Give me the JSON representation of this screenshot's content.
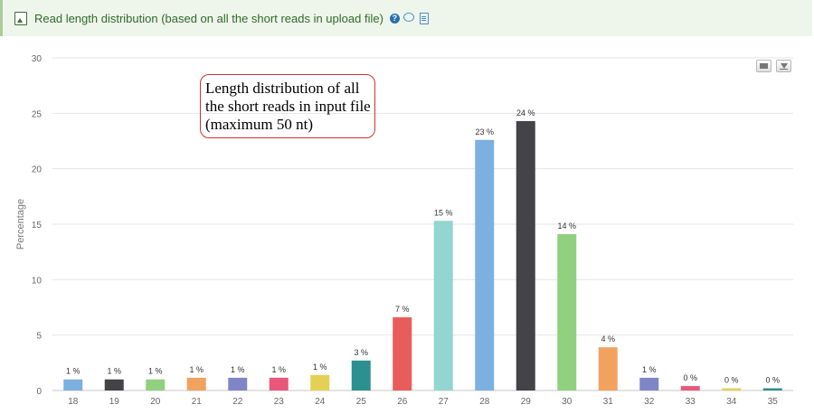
{
  "panel": {
    "title": "Read length distribution (based on all the short reads in upload file)",
    "help_icon_glyph": "?"
  },
  "annotation": {
    "text": "Length distribution of all the short reads in input file (maximum 50 nt)"
  },
  "chart_data": {
    "type": "bar",
    "categories": [
      "18",
      "19",
      "20",
      "21",
      "22",
      "23",
      "24",
      "25",
      "26",
      "27",
      "28",
      "29",
      "30",
      "31",
      "32",
      "33",
      "34",
      "35"
    ],
    "values": [
      1.0,
      1.0,
      1.0,
      1.15,
      1.15,
      1.15,
      1.4,
      2.7,
      6.6,
      15.3,
      22.6,
      24.3,
      14.1,
      3.9,
      1.15,
      0.4,
      0.2,
      0.2
    ],
    "data_labels": [
      "1 %",
      "1 %",
      "1 %",
      "1 %",
      "1 %",
      "1 %",
      "1 %",
      "3 %",
      "7 %",
      "15 %",
      "23 %",
      "24 %",
      "14 %",
      "4 %",
      "1 %",
      "0 %",
      "0 %",
      "0 %"
    ],
    "colors": [
      "#7cb0e0",
      "#434348",
      "#90d07e",
      "#f2a25f",
      "#8085c8",
      "#e9577a",
      "#e4d154",
      "#2b908f",
      "#e85c5c",
      "#93d5d0",
      "#7cb0e0",
      "#434348",
      "#90d07e",
      "#f2a25f",
      "#8085c8",
      "#e9577a",
      "#e4d154",
      "#2b908f"
    ],
    "title": "",
    "xlabel": "",
    "ylabel": "Percentage",
    "ylim": [
      0,
      30
    ],
    "yticks": [
      0,
      5,
      10,
      15,
      20,
      25,
      30
    ],
    "grid": true
  }
}
